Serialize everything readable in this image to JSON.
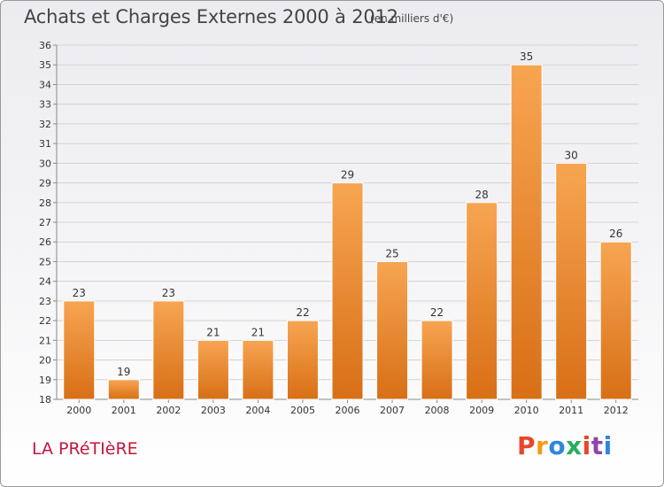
{
  "header": {
    "title": "Achats et Charges Externes 2000 à 2012",
    "unit": "(en milliers d'€)"
  },
  "footer": {
    "commune": "LA PRéTIèRE",
    "logo_text": "Proxiti",
    "logo_colors": [
      "#e8462a",
      "#f39c12",
      "#2e86de",
      "#27ae60",
      "#e8462a",
      "#8e44ad",
      "#2e86de"
    ]
  },
  "colors": {
    "bar_top": "#f7a552",
    "bar_bottom": "#d86f16"
  },
  "chart_data": {
    "type": "bar",
    "categories": [
      "2000",
      "2001",
      "2002",
      "2003",
      "2004",
      "2005",
      "2006",
      "2007",
      "2008",
      "2009",
      "2010",
      "2011",
      "2012"
    ],
    "values": [
      23,
      19,
      23,
      21,
      21,
      22,
      29,
      25,
      22,
      28,
      35,
      30,
      26
    ],
    "ylim": [
      18,
      36
    ],
    "yticks": [
      18,
      19,
      20,
      21,
      22,
      23,
      24,
      25,
      26,
      27,
      28,
      29,
      30,
      31,
      32,
      33,
      34,
      35,
      36
    ],
    "grid": true,
    "legend": "none"
  }
}
